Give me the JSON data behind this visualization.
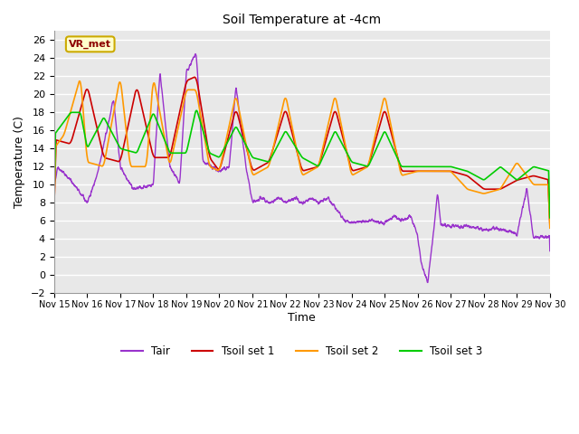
{
  "title": "Soil Temperature at -4cm",
  "xlabel": "Time",
  "ylabel": "Temperature (C)",
  "ylim": [
    -2,
    27
  ],
  "yticks": [
    -2,
    0,
    2,
    4,
    6,
    8,
    10,
    12,
    14,
    16,
    18,
    20,
    22,
    24,
    26
  ],
  "line_colors": {
    "Tair": "#9933cc",
    "Tsoil set 1": "#cc0000",
    "Tsoil set 2": "#ff9900",
    "Tsoil set 3": "#00cc00"
  },
  "legend_label": "VR_met",
  "legend_bg": "#ffffcc",
  "legend_border": "#ccaa00",
  "fig_bg": "#ffffff",
  "plot_bg": "#e8e8e8",
  "grid_color": "#ffffff",
  "xtick_labels": [
    "Nov 15",
    "Nov 16",
    "Nov 17",
    "Nov 18",
    "Nov 19",
    "Nov 20",
    "Nov 21",
    "Nov 22",
    "Nov 23",
    "Nov 24",
    "Nov 25",
    "Nov 26",
    "Nov 27",
    "Nov 28",
    "Nov 29",
    "Nov 30"
  ],
  "tair_key_points_x": [
    0,
    0.1,
    0.5,
    1.0,
    1.3,
    1.8,
    2.0,
    2.4,
    3.0,
    3.2,
    3.5,
    3.8,
    4.0,
    4.3,
    4.5,
    5.0,
    5.3,
    5.5,
    5.8,
    6.0,
    6.3,
    6.5,
    6.8,
    7.0,
    7.3,
    7.5,
    7.8,
    8.0,
    8.3,
    8.8,
    9.0,
    9.5,
    10.0,
    10.3,
    10.5,
    10.8,
    11.0,
    11.1,
    11.3,
    11.5,
    11.6,
    11.7,
    12.0,
    12.3,
    12.5,
    12.8,
    13.0,
    13.3,
    13.5,
    13.8,
    14.0,
    14.3,
    14.5,
    15.0
  ],
  "tair_key_points_y": [
    9.8,
    12.0,
    10.5,
    8.0,
    11.0,
    19.5,
    12.0,
    9.5,
    10.0,
    22.5,
    12.0,
    10.0,
    22.5,
    24.5,
    12.5,
    11.5,
    12.0,
    21.0,
    12.0,
    8.0,
    8.5,
    8.0,
    8.5,
    8.0,
    8.5,
    8.0,
    8.5,
    8.0,
    8.5,
    6.0,
    5.8,
    6.0,
    5.8,
    6.5,
    6.0,
    6.5,
    4.2,
    1.5,
    -1.0,
    5.5,
    9.3,
    5.5,
    5.5,
    5.3,
    5.5,
    5.2,
    5.0,
    5.2,
    5.0,
    4.8,
    4.5,
    9.5,
    4.2,
    4.2
  ],
  "tsoil1_key_points_x": [
    0,
    0.5,
    1.0,
    1.5,
    2.0,
    2.5,
    3.0,
    3.5,
    4.0,
    4.3,
    4.7,
    5.0,
    5.5,
    6.0,
    6.5,
    7.0,
    7.5,
    8.0,
    8.5,
    9.0,
    9.5,
    10.0,
    10.5,
    11.0,
    11.5,
    12.0,
    12.5,
    13.0,
    13.5,
    14.0,
    14.5,
    15.0
  ],
  "tsoil1_key_points_y": [
    15.0,
    14.5,
    21.0,
    13.0,
    12.5,
    21.0,
    13.0,
    13.0,
    21.5,
    22.0,
    13.0,
    11.5,
    18.5,
    11.5,
    12.5,
    18.5,
    11.5,
    12.0,
    18.5,
    11.5,
    12.0,
    18.5,
    11.5,
    11.5,
    11.5,
    11.5,
    11.0,
    9.5,
    9.5,
    10.5,
    11.0,
    10.5
  ],
  "tsoil2_key_points_x": [
    0,
    0.3,
    0.8,
    1.0,
    1.5,
    2.0,
    2.3,
    2.8,
    3.0,
    3.5,
    4.0,
    4.3,
    4.7,
    5.0,
    5.5,
    6.0,
    6.5,
    7.0,
    7.5,
    8.0,
    8.5,
    9.0,
    9.5,
    10.0,
    10.5,
    11.0,
    11.5,
    12.0,
    12.5,
    13.0,
    13.5,
    14.0,
    14.5,
    15.0
  ],
  "tsoil2_key_points_y": [
    14.0,
    15.5,
    22.0,
    12.5,
    12.0,
    22.0,
    12.0,
    12.0,
    22.0,
    12.0,
    20.5,
    20.5,
    12.0,
    11.5,
    20.0,
    11.0,
    12.0,
    20.0,
    11.0,
    12.0,
    20.0,
    11.0,
    12.0,
    20.0,
    11.0,
    11.5,
    11.5,
    11.5,
    9.5,
    9.0,
    9.5,
    12.5,
    10.0,
    10.0
  ],
  "tsoil3_key_points_x": [
    0,
    0.5,
    0.8,
    1.0,
    1.5,
    2.0,
    2.5,
    3.0,
    3.5,
    4.0,
    4.3,
    4.7,
    5.0,
    5.5,
    6.0,
    6.5,
    7.0,
    7.5,
    8.0,
    8.5,
    9.0,
    9.5,
    10.0,
    10.5,
    11.0,
    11.5,
    12.0,
    12.5,
    13.0,
    13.5,
    14.0,
    14.5,
    15.0
  ],
  "tsoil3_key_points_y": [
    15.5,
    18.0,
    18.0,
    14.0,
    17.5,
    14.0,
    13.5,
    18.0,
    13.5,
    13.5,
    18.5,
    13.5,
    13.0,
    16.5,
    13.0,
    12.5,
    16.0,
    13.0,
    12.0,
    16.0,
    12.5,
    12.0,
    16.0,
    12.0,
    12.0,
    12.0,
    12.0,
    11.5,
    10.5,
    12.0,
    10.5,
    12.0,
    11.5
  ]
}
